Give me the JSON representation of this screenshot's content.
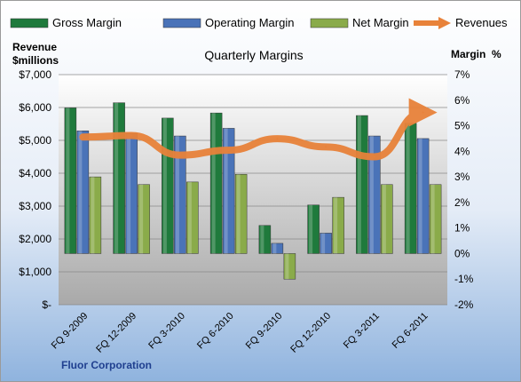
{
  "chart_data": {
    "type": "bar",
    "title": "Quarterly Margins",
    "left_axis_label_line1": "Revenue",
    "left_axis_label_line2": "$millions",
    "right_axis_label": "Margin  %",
    "footer": "Fluor Corporation",
    "categories": [
      "FQ 9-2009",
      "FQ 12-2009",
      "FQ 3-2010",
      "FQ 6-2010",
      "FQ 9-2010",
      "FQ 12-2010",
      "FQ 3-2011",
      "FQ 6-2011"
    ],
    "left_axis": {
      "min": 0,
      "max": 7000,
      "ticks": [
        "$-",
        "$1,000",
        "$2,000",
        "$3,000",
        "$4,000",
        "$5,000",
        "$6,000",
        "$7,000"
      ]
    },
    "right_axis": {
      "min": -2,
      "max": 7,
      "ticks": [
        "-2%",
        "-1%",
        "0%",
        "1%",
        "2%",
        "3%",
        "4%",
        "5%",
        "6%",
        "7%"
      ]
    },
    "series": [
      {
        "name": "Gross Margin",
        "axis": "right",
        "kind": "bar",
        "color": "#1f7a3c",
        "values": [
          5.7,
          5.9,
          5.3,
          5.5,
          1.1,
          1.9,
          5.4,
          5.1
        ]
      },
      {
        "name": "Operating Margin",
        "axis": "right",
        "kind": "bar",
        "color": "#4a73b8",
        "values": [
          4.8,
          4.7,
          4.6,
          4.9,
          0.4,
          0.8,
          4.6,
          4.5
        ]
      },
      {
        "name": "Net Margin",
        "axis": "right",
        "kind": "bar",
        "color": "#8aab4a",
        "values": [
          3.0,
          2.7,
          2.8,
          3.1,
          -1.0,
          2.2,
          2.7,
          2.7
        ]
      },
      {
        "name": "Revenues",
        "axis": "left",
        "kind": "line",
        "color": "#e8823a",
        "values": [
          5100,
          5150,
          4550,
          4700,
          5050,
          4800,
          4500,
          5850
        ]
      }
    ],
    "grid": true,
    "legend_position": "top"
  }
}
